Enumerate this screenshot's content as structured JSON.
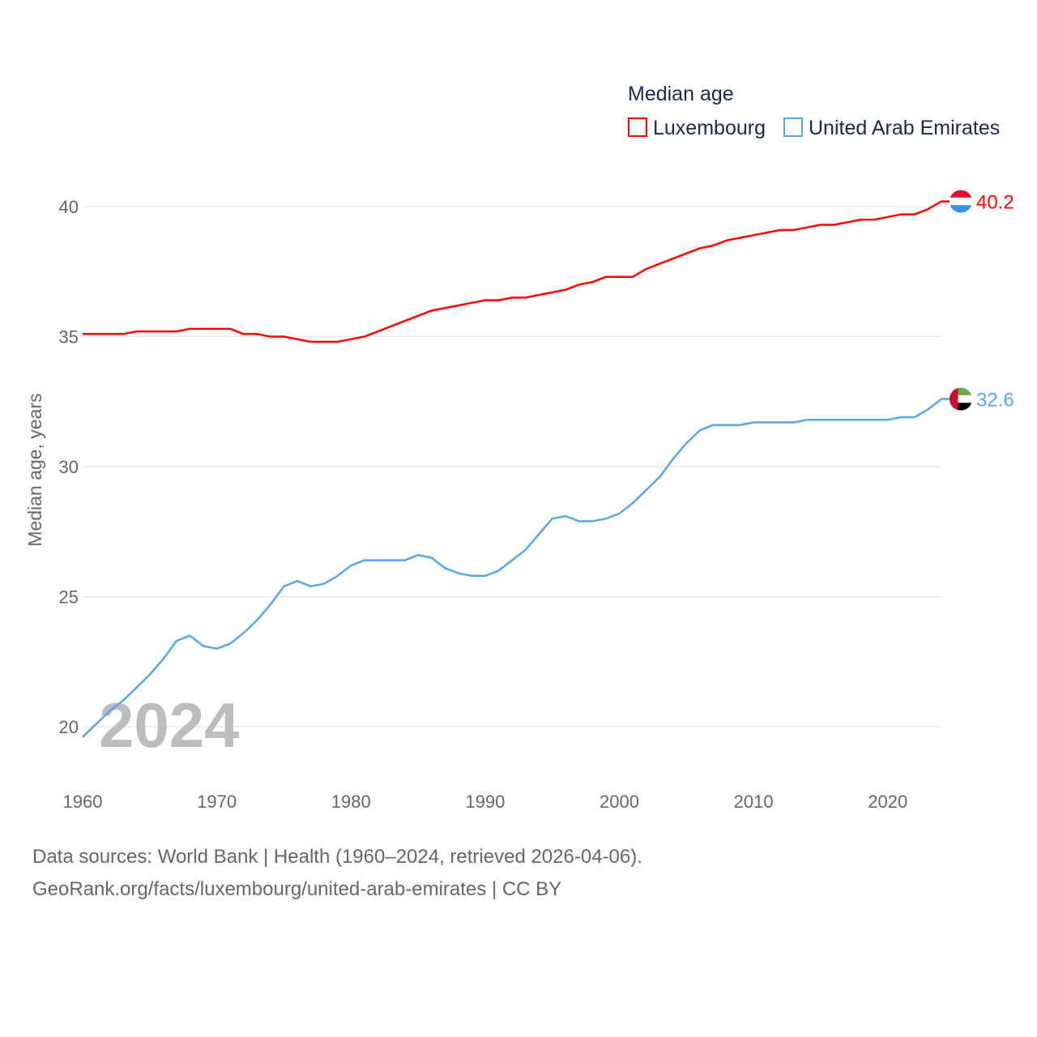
{
  "chart_data": {
    "type": "line",
    "title": "Median age",
    "xlabel": "",
    "ylabel": "Median age, years",
    "xlim": [
      1960,
      2024
    ],
    "ylim": [
      19,
      42
    ],
    "yticks": [
      20,
      25,
      30,
      35,
      40
    ],
    "xticks": [
      1960,
      1970,
      1980,
      1990,
      2000,
      2010,
      2020
    ],
    "grid": true,
    "legend_position": "top-right",
    "year_label": "2024",
    "x": [
      1960,
      1961,
      1962,
      1963,
      1964,
      1965,
      1966,
      1967,
      1968,
      1969,
      1970,
      1971,
      1972,
      1973,
      1974,
      1975,
      1976,
      1977,
      1978,
      1979,
      1980,
      1981,
      1982,
      1983,
      1984,
      1985,
      1986,
      1987,
      1988,
      1989,
      1990,
      1991,
      1992,
      1993,
      1994,
      1995,
      1996,
      1997,
      1998,
      1999,
      2000,
      2001,
      2002,
      2003,
      2004,
      2005,
      2006,
      2007,
      2008,
      2009,
      2010,
      2011,
      2012,
      2013,
      2014,
      2015,
      2016,
      2017,
      2018,
      2019,
      2020,
      2021,
      2022,
      2023,
      2024
    ],
    "series": [
      {
        "name": "Luxembourg",
        "color": "#ff0000",
        "end_label": "40.2",
        "values": [
          35.1,
          35.1,
          35.1,
          35.1,
          35.2,
          35.2,
          35.2,
          35.2,
          35.3,
          35.3,
          35.3,
          35.3,
          35.1,
          35.1,
          35.0,
          35.0,
          34.9,
          34.8,
          34.8,
          34.8,
          34.9,
          35.0,
          35.2,
          35.4,
          35.6,
          35.8,
          36.0,
          36.1,
          36.2,
          36.3,
          36.4,
          36.4,
          36.5,
          36.5,
          36.6,
          36.7,
          36.8,
          37.0,
          37.1,
          37.3,
          37.3,
          37.3,
          37.6,
          37.8,
          38.0,
          38.2,
          38.4,
          38.5,
          38.7,
          38.8,
          38.9,
          39.0,
          39.1,
          39.1,
          39.2,
          39.3,
          39.3,
          39.4,
          39.5,
          39.5,
          39.6,
          39.7,
          39.7,
          39.9,
          40.2
        ]
      },
      {
        "name": "United Arab Emirates",
        "color": "#5aa5ec",
        "end_label": "32.6",
        "values": [
          19.6,
          20.1,
          20.6,
          21.0,
          21.5,
          22.0,
          22.6,
          23.3,
          23.5,
          23.1,
          23.0,
          23.2,
          23.6,
          24.1,
          24.7,
          25.4,
          25.6,
          25.4,
          25.5,
          25.8,
          26.2,
          26.4,
          26.4,
          26.4,
          26.4,
          26.6,
          26.5,
          26.1,
          25.9,
          25.8,
          25.8,
          26.0,
          26.4,
          26.8,
          27.4,
          28.0,
          28.1,
          27.9,
          27.9,
          28.0,
          28.2,
          28.6,
          29.1,
          29.6,
          30.3,
          30.9,
          31.4,
          31.6,
          31.6,
          31.6,
          31.7,
          31.7,
          31.7,
          31.7,
          31.8,
          31.8,
          31.8,
          31.8,
          31.8,
          31.8,
          31.8,
          31.9,
          31.9,
          32.2,
          32.6
        ]
      }
    ]
  },
  "footer": {
    "line1": "Data sources: World Bank | Health (1960–2024, retrieved 2026-04-06).",
    "line2": "GeoRank.org/facts/luxembourg/united-arab-emirates | CC BY"
  }
}
